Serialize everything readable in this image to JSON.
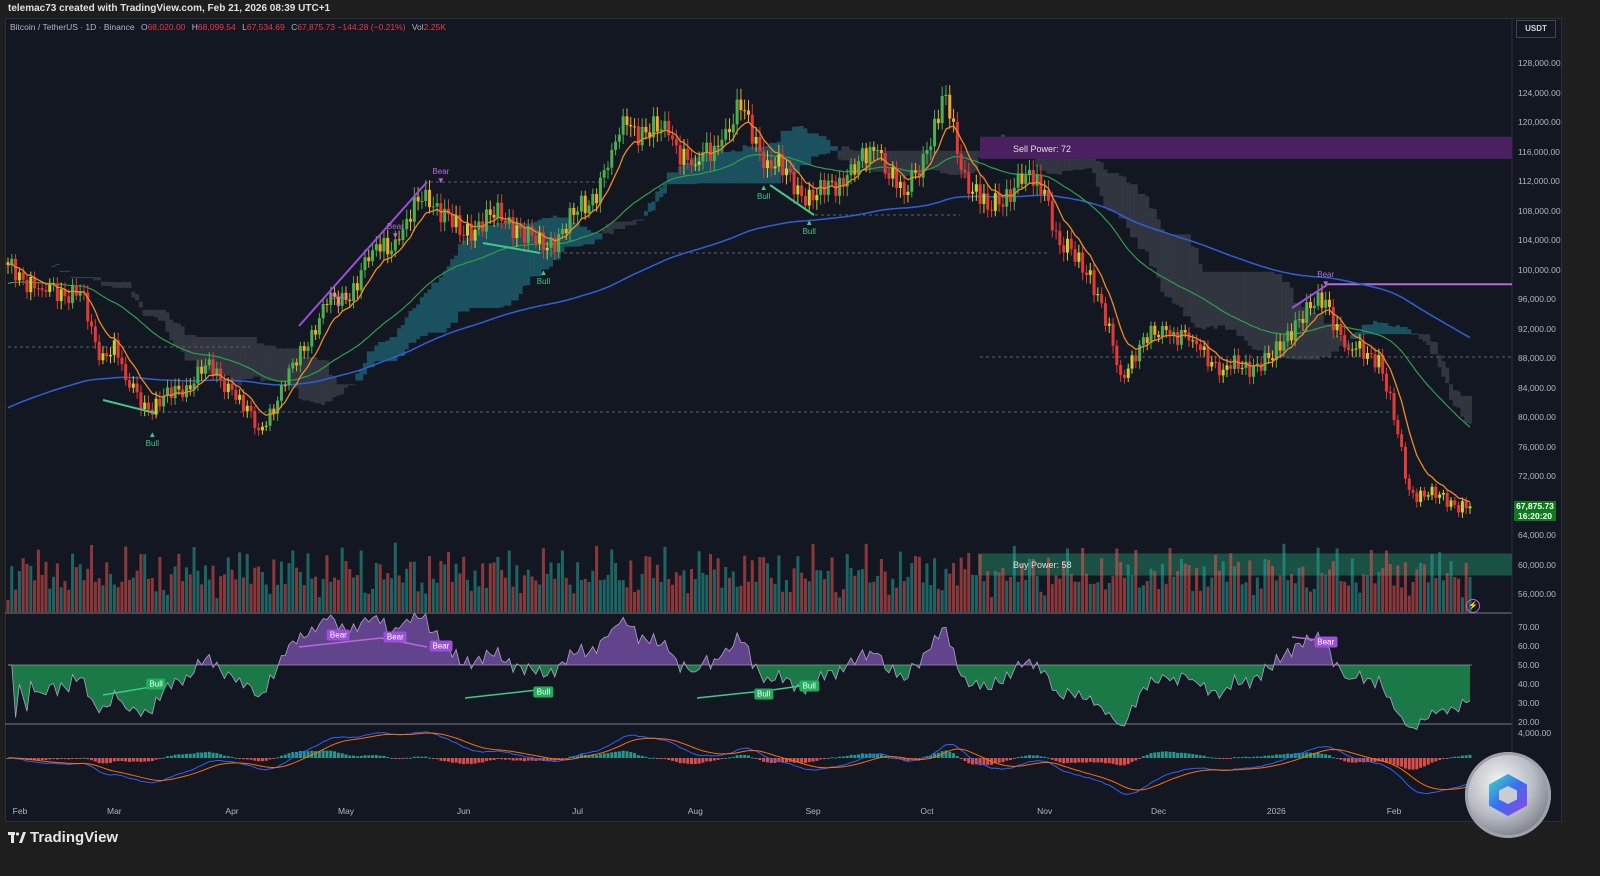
{
  "header": {
    "credit": "telemac73 created with TradingView.com, Feb 21, 2026 08:39 UTC+1"
  },
  "legend": {
    "symbol": "Bitcoin / TetherUS · 1D · Binance",
    "open_label": "O",
    "open": "68,020.00",
    "high_label": "H",
    "high": "68,099.54",
    "low_label": "L",
    "low": "67,534.69",
    "close_label": "C",
    "close": "67,875.73",
    "change": "−144.28 (−0.21%)",
    "vol_label": "Vol",
    "vol": "2.25K"
  },
  "currency": "USDT",
  "last_price": {
    "price": "67,875.73",
    "countdown": "16:20:20"
  },
  "colors": {
    "background": "#131722",
    "up": "#4caf50",
    "down": "#e53935",
    "ema": "#f08a24",
    "ma_green": "#2e9e4a",
    "ma_blue": "#2f5fd8",
    "sell_zone": "#4a2060",
    "buy_zone": "#1d5a4a",
    "bear": "#9c4fd8",
    "bull": "#1fae5c",
    "last_price_box": "#0f7a1c"
  },
  "zones": {
    "sell": "Sell Power: 72",
    "buy": "Buy Power: 58"
  },
  "markers": {
    "main": [
      {
        "type": "bear",
        "label": "Bear",
        "date": "2025-04-29",
        "price": 94500
      },
      {
        "type": "bear",
        "label": "Bear",
        "date": "2025-05-14",
        "price": 104000
      },
      {
        "type": "bear",
        "label": "Bear",
        "date": "2025-05-26",
        "price": 111500
      },
      {
        "type": "bear",
        "label": "Bear",
        "date": "2026-01-14",
        "price": 97500
      },
      {
        "type": "bull",
        "label": "Bull",
        "date": "2025-03-11",
        "price": 78500
      },
      {
        "type": "bull",
        "label": "Bull",
        "date": "2025-06-22",
        "price": 100500
      },
      {
        "type": "bull",
        "label": "Bull",
        "date": "2025-08-19",
        "price": 112000
      },
      {
        "type": "bull",
        "label": "Bull",
        "date": "2025-08-31",
        "price": 107200
      }
    ],
    "rsi": [
      {
        "type": "bear",
        "label": "Bear",
        "date": "2025-04-29",
        "rsi": 66
      },
      {
        "type": "bear",
        "label": "Bear",
        "date": "2025-05-14",
        "rsi": 65
      },
      {
        "type": "bear",
        "label": "Bear",
        "date": "2025-05-26",
        "rsi": 60
      },
      {
        "type": "bear",
        "label": "Bear",
        "date": "2026-01-14",
        "rsi": 62
      },
      {
        "type": "bull",
        "label": "Bull",
        "date": "2025-03-12",
        "rsi": 40
      },
      {
        "type": "bull",
        "label": "Bull",
        "date": "2025-06-22",
        "rsi": 36
      },
      {
        "type": "bull",
        "label": "Bull",
        "date": "2025-08-19",
        "rsi": 35
      },
      {
        "type": "bull",
        "label": "Bull",
        "date": "2025-08-31",
        "rsi": 39
      }
    ]
  },
  "footer": {
    "brand": "TradingView"
  },
  "chart_data": {
    "type": "candlestick",
    "title": "Bitcoin / TetherUS · 1D · Binance",
    "x_range": [
      "2025-02-01",
      "2026-02-21"
    ],
    "ylim": [
      54000,
      130000
    ],
    "price_ticks": [
      "128,000.00",
      "124,000.00",
      "120,000.00",
      "116,000.00",
      "112,000.00",
      "108,000.00",
      "104,000.00",
      "100,000.00",
      "96,000.00",
      "92,000.00",
      "88,000.00",
      "84,000.00",
      "80,000.00",
      "76,000.00",
      "72,000.00",
      "64,000.00",
      "60,000.00",
      "56,000.00"
    ],
    "rsi_ticks": [
      "70.00",
      "60.00",
      "50.00",
      "40.00",
      "30.00",
      "20.00"
    ],
    "macd_ticks": [
      "4,000.00"
    ],
    "time_labels": [
      {
        "label": "Feb",
        "date": "2025-02-01"
      },
      {
        "label": "Mar",
        "date": "2025-03-01"
      },
      {
        "label": "Apr",
        "date": "2025-04-01"
      },
      {
        "label": "May",
        "date": "2025-05-01"
      },
      {
        "label": "Jun",
        "date": "2025-06-01"
      },
      {
        "label": "Jul",
        "date": "2025-07-01"
      },
      {
        "label": "Aug",
        "date": "2025-08-01"
      },
      {
        "label": "Sep",
        "date": "2025-09-01"
      },
      {
        "label": "Oct",
        "date": "2025-10-01"
      },
      {
        "label": "Nov",
        "date": "2025-11-01"
      },
      {
        "label": "Dec",
        "date": "2025-12-01"
      },
      {
        "label": "2026",
        "date": "2026-01-01"
      },
      {
        "label": "Feb",
        "date": "2026-02-01"
      }
    ],
    "approx_closes": [
      [
        "2025-02-01",
        100600
      ],
      [
        "2025-02-10",
        97200
      ],
      [
        "2025-02-20",
        97000
      ],
      [
        "2025-02-25",
        87700
      ],
      [
        "2025-03-01",
        90400
      ],
      [
        "2025-03-04",
        85000
      ],
      [
        "2025-03-10",
        81000
      ],
      [
        "2025-03-20",
        84300
      ],
      [
        "2025-03-25",
        87000
      ],
      [
        "2025-04-01",
        83700
      ],
      [
        "2025-04-08",
        78200
      ],
      [
        "2025-04-15",
        84300
      ],
      [
        "2025-04-22",
        91800
      ],
      [
        "2025-04-26",
        95200
      ],
      [
        "2025-05-01",
        95900
      ],
      [
        "2025-05-08",
        102600
      ],
      [
        "2025-05-15",
        104000
      ],
      [
        "2025-05-22",
        110800
      ],
      [
        "2025-05-31",
        104700
      ],
      [
        "2025-06-08",
        107400
      ],
      [
        "2025-06-15",
        106000
      ],
      [
        "2025-06-22",
        102600
      ],
      [
        "2025-06-30",
        107400
      ],
      [
        "2025-07-04",
        108700
      ],
      [
        "2025-07-10",
        116200
      ],
      [
        "2025-07-14",
        119600
      ],
      [
        "2025-07-25",
        118200
      ],
      [
        "2025-08-01",
        114200
      ],
      [
        "2025-08-08",
        117600
      ],
      [
        "2025-08-13",
        121600
      ],
      [
        "2025-08-20",
        114800
      ],
      [
        "2025-08-28",
        111400
      ],
      [
        "2025-09-01",
        109400
      ],
      [
        "2025-09-10",
        112800
      ],
      [
        "2025-09-18",
        116200
      ],
      [
        "2025-09-25",
        110100
      ],
      [
        "2025-10-01",
        116200
      ],
      [
        "2025-10-06",
        123700
      ],
      [
        "2025-10-10",
        113500
      ],
      [
        "2025-10-17",
        108100
      ],
      [
        "2025-10-27",
        112800
      ],
      [
        "2025-11-01",
        110800
      ],
      [
        "2025-11-05",
        103300
      ],
      [
        "2025-11-13",
        99900
      ],
      [
        "2025-11-21",
        85700
      ],
      [
        "2025-11-26",
        89800
      ],
      [
        "2025-12-03",
        91800
      ],
      [
        "2025-12-10",
        90400
      ],
      [
        "2025-12-18",
        86400
      ],
      [
        "2025-12-31",
        87700
      ],
      [
        "2026-01-06",
        93100
      ],
      [
        "2026-01-14",
        95900
      ],
      [
        "2026-01-20",
        89100
      ],
      [
        "2026-01-28",
        88400
      ],
      [
        "2026-02-01",
        79600
      ],
      [
        "2026-02-05",
        70100
      ],
      [
        "2026-02-10",
        69400
      ],
      [
        "2026-02-21",
        67875.73
      ]
    ],
    "levels": {
      "sell_zone": [
        115000,
        118000
      ],
      "buy_zone": [
        58500,
        61500
      ],
      "resistance": 98000
    }
  }
}
